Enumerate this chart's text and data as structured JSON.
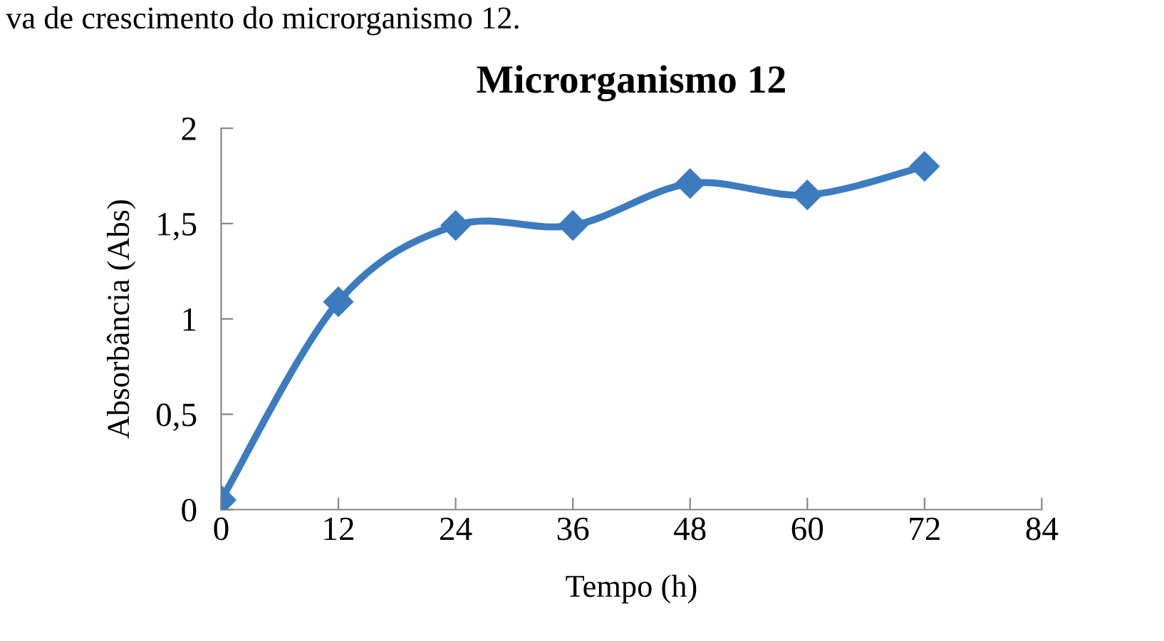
{
  "chart_data": {
    "type": "line",
    "title": "Microrganismo 12",
    "xlabel": "Tempo (h)",
    "ylabel": "Absorbância (Abs)",
    "annotations": [
      "va de crescimento do microrganismo 12."
    ],
    "x": [
      0,
      12,
      24,
      36,
      48,
      60,
      72
    ],
    "series": [
      {
        "color": "#3d7bbf",
        "values": [
          0.05,
          1.09,
          1.49,
          1.49,
          1.71,
          1.65,
          1.8
        ]
      }
    ],
    "xlim": [
      0,
      84
    ],
    "xticks": [
      0,
      12,
      24,
      36,
      48,
      60,
      72,
      84
    ],
    "ylim": [
      0,
      2
    ],
    "yticks": [
      {
        "value": 0,
        "label": "0"
      },
      {
        "value": 0.5,
        "label": "0,5"
      },
      {
        "value": 1,
        "label": "1"
      },
      {
        "value": 1.5,
        "label": "1,5"
      },
      {
        "value": 2,
        "label": "2"
      }
    ],
    "marker": "diamond",
    "line_style": "solid",
    "grid": false,
    "legend": false
  }
}
